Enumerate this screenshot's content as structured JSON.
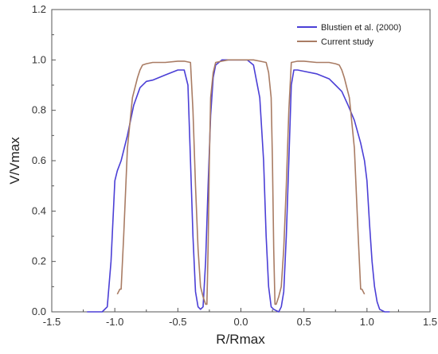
{
  "chart_data": {
    "type": "line",
    "title": "",
    "xlabel": "R/Rmax",
    "ylabel": "V/Vmax",
    "xlim": [
      -1.5,
      1.5
    ],
    "ylim": [
      0.0,
      1.2
    ],
    "xticks": [
      -1.5,
      -1.0,
      -0.5,
      0.0,
      0.5,
      1.0,
      1.5
    ],
    "yticks": [
      0.0,
      0.2,
      0.4,
      0.6,
      0.8,
      1.0,
      1.2
    ],
    "xtick_labels": [
      "-1.5",
      "-1.0",
      "-0.5",
      "0.0",
      "0.5",
      "1.0",
      "1.5"
    ],
    "ytick_labels": [
      "0.0",
      "0.2",
      "0.4",
      "0.6",
      "0.8",
      "1.0",
      "1.2"
    ],
    "grid": false,
    "legend_position": "top-right",
    "series": [
      {
        "name": "Blustien et al. (2000)",
        "color": "#4b3fd6",
        "x": [
          -1.22,
          -1.1,
          -1.06,
          -1.03,
          -1.0,
          -0.98,
          -0.95,
          -0.9,
          -0.85,
          -0.8,
          -0.75,
          -0.7,
          -0.6,
          -0.5,
          -0.45,
          -0.42,
          -0.4,
          -0.38,
          -0.36,
          -0.34,
          -0.32,
          -0.3,
          -0.28,
          -0.26,
          -0.24,
          -0.22,
          -0.2,
          -0.15,
          -0.1,
          -0.05,
          0.0,
          0.05,
          0.1,
          0.15,
          0.18,
          0.2,
          0.22,
          0.24,
          0.26,
          0.28,
          0.3,
          0.32,
          0.34,
          0.36,
          0.38,
          0.4,
          0.42,
          0.45,
          0.5,
          0.6,
          0.7,
          0.75,
          0.8,
          0.85,
          0.9,
          0.95,
          0.98,
          1.0,
          1.02,
          1.04,
          1.06,
          1.08,
          1.1,
          1.14,
          1.18
        ],
        "y": [
          0.0,
          0.0,
          0.02,
          0.2,
          0.52,
          0.56,
          0.6,
          0.7,
          0.82,
          0.89,
          0.915,
          0.92,
          0.94,
          0.96,
          0.96,
          0.9,
          0.6,
          0.3,
          0.08,
          0.02,
          0.01,
          0.02,
          0.2,
          0.5,
          0.78,
          0.93,
          0.98,
          1.0,
          1.0,
          1.0,
          1.0,
          1.0,
          0.98,
          0.85,
          0.6,
          0.3,
          0.1,
          0.02,
          0.01,
          0.005,
          0.0,
          0.02,
          0.08,
          0.3,
          0.6,
          0.9,
          0.96,
          0.96,
          0.955,
          0.945,
          0.925,
          0.9,
          0.875,
          0.82,
          0.76,
          0.67,
          0.6,
          0.52,
          0.35,
          0.2,
          0.1,
          0.04,
          0.01,
          0.0,
          0.0
        ]
      },
      {
        "name": "Current study",
        "color": "#a97c64",
        "x": [
          -0.98,
          -0.96,
          -0.95,
          -0.93,
          -0.9,
          -0.86,
          -0.82,
          -0.8,
          -0.78,
          -0.75,
          -0.7,
          -0.6,
          -0.5,
          -0.45,
          -0.4,
          -0.38,
          -0.36,
          -0.34,
          -0.32,
          -0.3,
          -0.28,
          -0.27,
          -0.26,
          -0.25,
          -0.24,
          -0.22,
          -0.2,
          -0.15,
          -0.1,
          -0.05,
          0.0,
          0.05,
          0.1,
          0.15,
          0.2,
          0.22,
          0.24,
          0.25,
          0.26,
          0.27,
          0.28,
          0.3,
          0.32,
          0.34,
          0.36,
          0.38,
          0.4,
          0.45,
          0.5,
          0.6,
          0.7,
          0.75,
          0.78,
          0.8,
          0.82,
          0.86,
          0.9,
          0.93,
          0.95,
          0.96,
          0.98
        ],
        "y": [
          0.07,
          0.09,
          0.09,
          0.3,
          0.65,
          0.85,
          0.93,
          0.96,
          0.98,
          0.985,
          0.99,
          0.99,
          0.995,
          0.995,
          0.99,
          0.8,
          0.5,
          0.25,
          0.1,
          0.06,
          0.03,
          0.03,
          0.25,
          0.6,
          0.85,
          0.95,
          0.99,
          0.995,
          1.0,
          1.0,
          1.0,
          1.0,
          1.0,
          0.995,
          0.99,
          0.95,
          0.85,
          0.6,
          0.25,
          0.03,
          0.03,
          0.06,
          0.1,
          0.25,
          0.5,
          0.8,
          0.99,
          0.995,
          0.995,
          0.99,
          0.99,
          0.985,
          0.98,
          0.96,
          0.93,
          0.85,
          0.65,
          0.3,
          0.09,
          0.09,
          0.07
        ]
      }
    ]
  }
}
